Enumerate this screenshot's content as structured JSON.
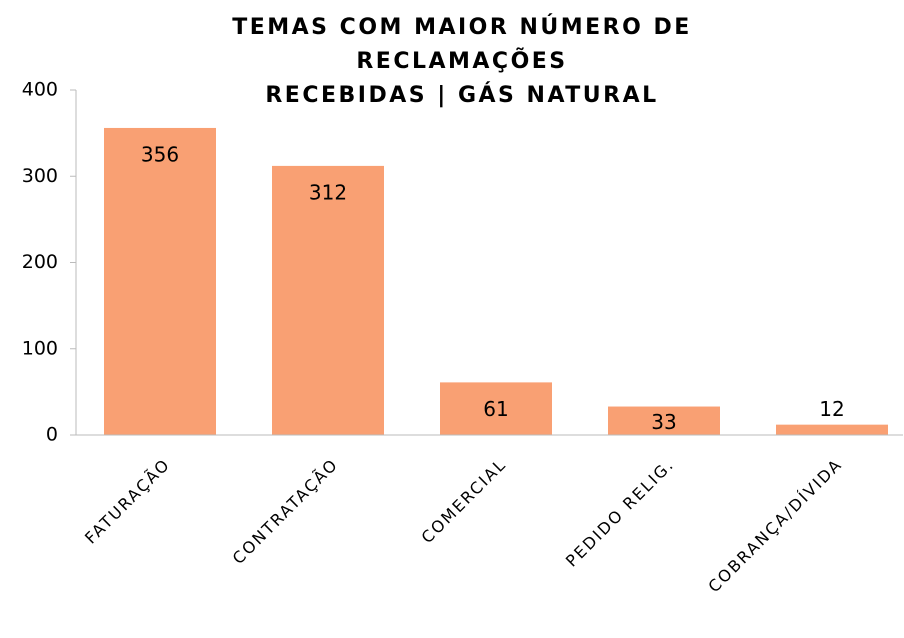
{
  "chart_data": {
    "type": "bar",
    "title": [
      "TEMAS COM MAIOR NÚMERO DE",
      "RECLAMAÇÕES",
      "RECEBIDAS | GÁS NATURAL"
    ],
    "categories": [
      "FATURAÇÃO",
      "CONTRATAÇÃO",
      "COMERCIAL",
      "PEDIDO RELIG.",
      "COBRANÇA/DÍVIDA"
    ],
    "values": [
      356,
      312,
      61,
      33,
      12
    ],
    "color": "#f9a073",
    "ylim": [
      0,
      400
    ],
    "yticks": [
      0,
      100,
      200,
      300,
      400
    ],
    "grid": false
  }
}
